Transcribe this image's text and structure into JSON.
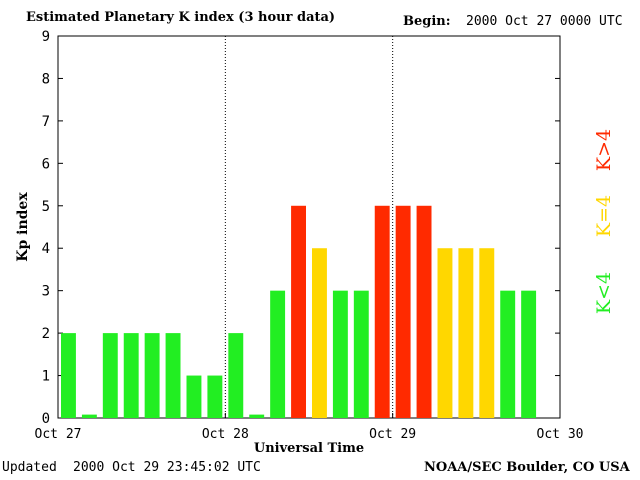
{
  "header": {
    "title": "Estimated Planetary K index (3 hour data)",
    "begin_label": "Begin:",
    "begin_value": "2000 Oct 27 0000 UTC"
  },
  "footer": {
    "updated_label": "Updated",
    "updated_value": "2000 Oct 29 23:45:02 UTC",
    "source": "NOAA/SEC Boulder, CO USA"
  },
  "legend": {
    "above": "K>4",
    "equal": "K=4",
    "below": "K<4"
  },
  "colors": {
    "below": "#22ee22",
    "equal": "#ffd700",
    "above": "#ff2a00"
  },
  "chart_data": {
    "type": "bar",
    "title": "Estimated Planetary K index (3 hour data)",
    "xlabel": "Universal Time",
    "ylabel": "Kp index",
    "ylim": [
      0,
      9
    ],
    "yticks": [
      "0",
      "1",
      "2",
      "3",
      "4",
      "5",
      "6",
      "7",
      "8",
      "9"
    ],
    "xticks": [
      "Oct 27",
      "Oct 28",
      "Oct 29",
      "Oct 30"
    ],
    "day_dividers": [
      "Oct 28",
      "Oct 29"
    ],
    "bars_per_day": 8,
    "values": [
      2,
      0,
      2,
      2,
      2,
      2,
      1,
      1,
      2,
      0,
      3,
      5,
      4,
      3,
      3,
      5,
      5,
      5,
      4,
      4,
      4,
      3,
      3
    ]
  }
}
